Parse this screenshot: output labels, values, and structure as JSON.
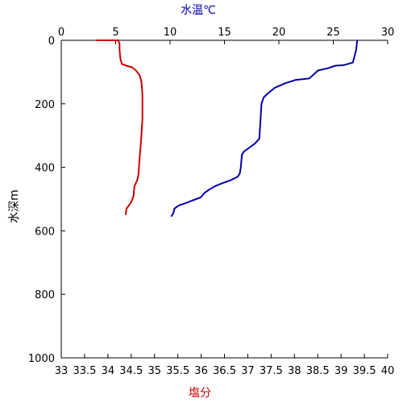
{
  "chart_data": {
    "type": "line",
    "x_top_label": "水温℃",
    "x_bottom_label": "塩分",
    "ylabel": "水深m",
    "top_axis": {
      "min": 0,
      "max": 30,
      "ticks": [
        "0",
        "5",
        "10",
        "15",
        "20",
        "25",
        "30"
      ]
    },
    "bottom_axis": {
      "min": 33,
      "max": 40,
      "ticks": [
        "33",
        "33.5",
        "34",
        "34.5",
        "35",
        "35.5",
        "36",
        "36.5",
        "37",
        "37.5",
        "38",
        "38.5",
        "39",
        "39.5",
        "40"
      ]
    },
    "y_axis": {
      "min": 0,
      "max": 1000,
      "inverted": true,
      "ticks": [
        "0",
        "200",
        "400",
        "600",
        "800",
        "1000"
      ]
    },
    "grid": false,
    "series": [
      {
        "color": "#cc0000",
        "x_axis": "bottom",
        "points": [
          [
            33.75,
            0
          ],
          [
            34.22,
            0
          ],
          [
            34.25,
            10
          ],
          [
            34.25,
            30
          ],
          [
            34.27,
            60
          ],
          [
            34.3,
            75
          ],
          [
            34.4,
            80
          ],
          [
            34.52,
            85
          ],
          [
            34.6,
            95
          ],
          [
            34.68,
            110
          ],
          [
            34.72,
            130
          ],
          [
            34.74,
            170
          ],
          [
            34.74,
            250
          ],
          [
            34.71,
            320
          ],
          [
            34.68,
            370
          ],
          [
            34.66,
            420
          ],
          [
            34.63,
            440
          ],
          [
            34.57,
            460
          ],
          [
            34.55,
            490
          ],
          [
            34.5,
            510
          ],
          [
            34.45,
            520
          ],
          [
            34.4,
            530
          ],
          [
            34.38,
            550
          ]
        ]
      },
      {
        "color": "#0000aa",
        "x_axis": "top",
        "points": [
          [
            27.2,
            0
          ],
          [
            27.1,
            30
          ],
          [
            26.8,
            70
          ],
          [
            26.0,
            78
          ],
          [
            25.2,
            80
          ],
          [
            24.5,
            88
          ],
          [
            23.6,
            95
          ],
          [
            22.8,
            120
          ],
          [
            21.5,
            125
          ],
          [
            20.6,
            135
          ],
          [
            19.6,
            150
          ],
          [
            18.9,
            170
          ],
          [
            18.6,
            180
          ],
          [
            18.4,
            200
          ],
          [
            18.3,
            260
          ],
          [
            18.2,
            310
          ],
          [
            17.8,
            325
          ],
          [
            17.4,
            335
          ],
          [
            16.8,
            350
          ],
          [
            16.6,
            360
          ],
          [
            16.5,
            400
          ],
          [
            16.4,
            420
          ],
          [
            16.2,
            430
          ],
          [
            15.6,
            440
          ],
          [
            14.8,
            450
          ],
          [
            14.1,
            460
          ],
          [
            13.6,
            470
          ],
          [
            13.2,
            480
          ],
          [
            12.8,
            495
          ],
          [
            12.0,
            505
          ],
          [
            11.5,
            512
          ],
          [
            10.8,
            520
          ],
          [
            10.4,
            530
          ],
          [
            10.3,
            545
          ],
          [
            10.1,
            555
          ]
        ]
      }
    ]
  }
}
